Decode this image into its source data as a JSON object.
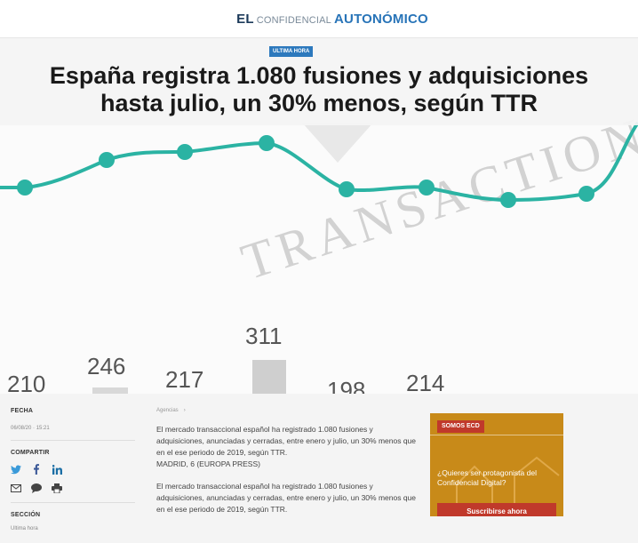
{
  "header": {
    "logo_el": "EL",
    "logo_confidencial": "Confidencial",
    "logo_autonomico": "AUTONÓMICO"
  },
  "article": {
    "badge": "Ultima hora",
    "headline_line1": "España registra 1.080 fusiones y adquisiciones",
    "headline_line2": "hasta julio, un 30% menos, según TTR",
    "breadcrumb": "Agencias",
    "breadcrumb_sep": "›",
    "paragraph1": "El mercado transaccional español ha registrado 1.080 fusiones y adquisiciones, anunciadas y cerradas, entre enero y julio, un 30% menos que en el ese periodo de 2019, según TTR.",
    "dateline": "MADRID, 6 (EUROPA PRESS)",
    "paragraph2": "El mercado transaccional español ha registrado 1.080 fusiones y adquisiciones, anunciadas y cerradas, entre enero y julio, un 30% menos que en el ese periodo de 2019, según TTR."
  },
  "meta": {
    "fecha_label": "FECHA",
    "fecha_value": "06/08/20 · 15:21",
    "compartir_label": "COMPARTIR",
    "seccion_label": "SECCIÓN",
    "seccion_value": "Ultima hora"
  },
  "hero_chart": {
    "watermark": "TRANSACTIONAL",
    "bar_labels": [
      "210",
      "246",
      "217",
      "311",
      "198",
      "214"
    ],
    "line_color": "#2bb3a3",
    "bar_color": "#cfcfcf"
  },
  "ad": {
    "tag": "SOMOS ECD",
    "text": "¿Quieres ser protagonista del Confidencial Digital?",
    "button": "Suscribirse ahora"
  },
  "icons": {
    "twitter": "twitter-icon",
    "facebook": "facebook-icon",
    "linkedin": "linkedin-icon",
    "email": "email-icon",
    "comment": "comment-icon",
    "print": "print-icon"
  }
}
